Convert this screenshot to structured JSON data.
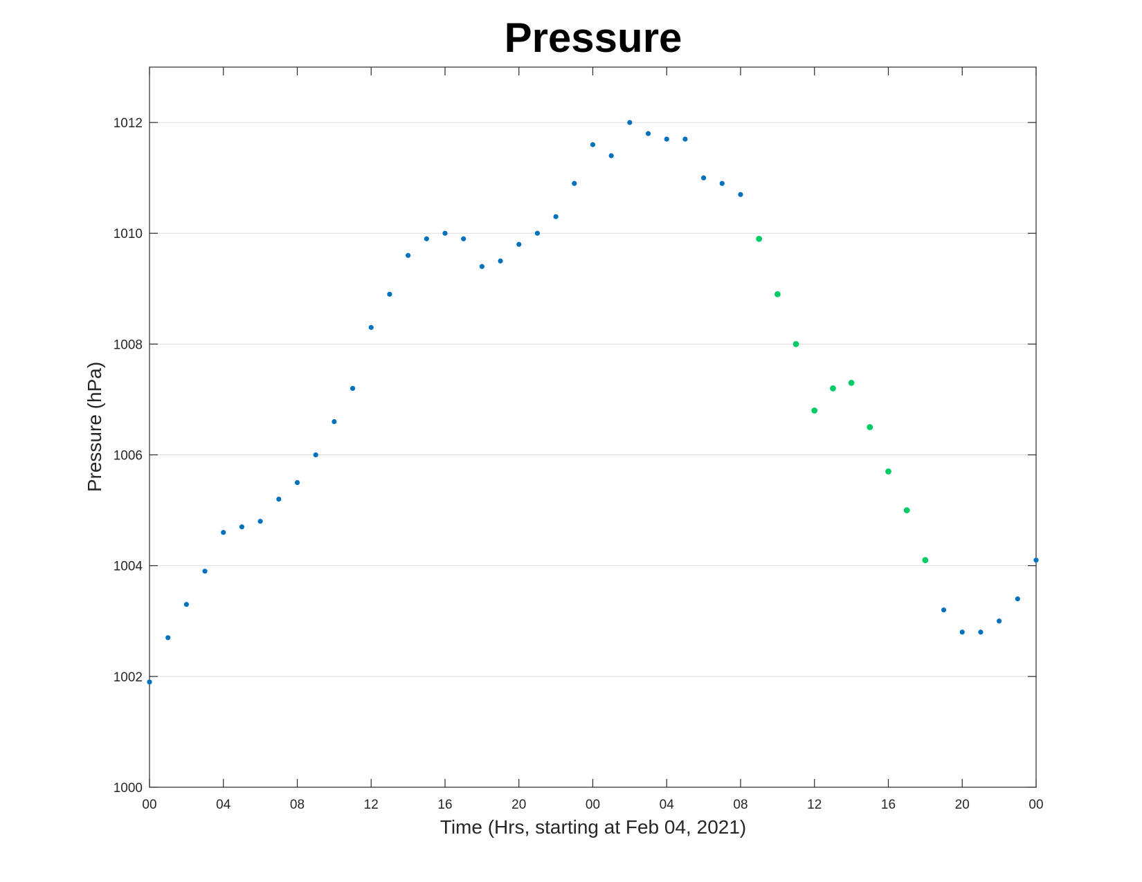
{
  "chart_data": {
    "type": "scatter",
    "title": "Pressure",
    "xlabel": "Time (Hrs, starting at Feb 04, 2021)",
    "ylabel": "Pressure (hPa)",
    "xlim": [
      0,
      48
    ],
    "ylim": [
      1000,
      1013
    ],
    "x_ticks": [
      {
        "value": 0,
        "label": "00"
      },
      {
        "value": 4,
        "label": "04"
      },
      {
        "value": 8,
        "label": "08"
      },
      {
        "value": 12,
        "label": "12"
      },
      {
        "value": 16,
        "label": "16"
      },
      {
        "value": 20,
        "label": "20"
      },
      {
        "value": 24,
        "label": "00"
      },
      {
        "value": 28,
        "label": "04"
      },
      {
        "value": 32,
        "label": "08"
      },
      {
        "value": 36,
        "label": "12"
      },
      {
        "value": 40,
        "label": "16"
      },
      {
        "value": 44,
        "label": "20"
      },
      {
        "value": 48,
        "label": "00"
      }
    ],
    "y_ticks": [
      1000,
      1002,
      1004,
      1006,
      1008,
      1010,
      1012
    ],
    "grid": "horizontal",
    "colors": {
      "primary": "#0072bd",
      "highlight": "#00cc66"
    },
    "series": [
      {
        "color": "#0072bd",
        "x": [
          0,
          1,
          2,
          3,
          4,
          5,
          6,
          7,
          8,
          9,
          10,
          11,
          12,
          13,
          14,
          15,
          16,
          17,
          18,
          19,
          20,
          21,
          22,
          23,
          24,
          25,
          26,
          27,
          28,
          29,
          30,
          31,
          32,
          43,
          44,
          45,
          46,
          47,
          48
        ],
        "y": [
          1001.9,
          1002.7,
          1003.3,
          1003.9,
          1004.6,
          1004.7,
          1004.8,
          1005.2,
          1005.5,
          1006.0,
          1006.6,
          1007.2,
          1008.3,
          1008.9,
          1009.6,
          1009.9,
          1010.0,
          1009.9,
          1009.4,
          1009.5,
          1009.8,
          1010.0,
          1010.3,
          1010.9,
          1011.6,
          1011.4,
          1012.0,
          1011.8,
          1011.7,
          1011.7,
          1011.0,
          1010.9,
          1010.7,
          1003.2,
          1002.8,
          1002.8,
          1003.0,
          1003.4,
          1004.1
        ]
      },
      {
        "color": "#00cc66",
        "x": [
          33,
          34,
          35,
          36,
          37,
          38,
          39,
          40,
          41,
          42
        ],
        "y": [
          1009.9,
          1008.9,
          1008.0,
          1006.8,
          1007.2,
          1007.3,
          1006.5,
          1005.7,
          1005.0,
          1004.1
        ]
      }
    ]
  }
}
